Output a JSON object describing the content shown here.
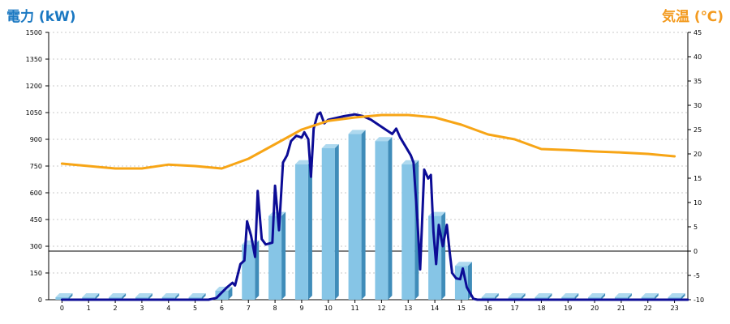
{
  "chart_data": {
    "type": "bar",
    "titles": {
      "left": "電力 (kW)",
      "right": "気温 (℃)"
    },
    "left_axis": {
      "min": 0,
      "max": 1500,
      "ticks": [
        "0",
        "150",
        "300",
        "450",
        "600",
        "750",
        "900",
        "1050",
        "1200",
        "1350",
        "1500"
      ]
    },
    "right_axis": {
      "min": -10,
      "max": 45,
      "ticks": [
        "-10",
        "-5",
        "0",
        "5",
        "10",
        "15",
        "20",
        "25",
        "30",
        "35",
        "40",
        "45"
      ]
    },
    "categories": [
      "0",
      "1",
      "2",
      "3",
      "4",
      "5",
      "6",
      "7",
      "8",
      "9",
      "10",
      "11",
      "12",
      "13",
      "14",
      "15",
      "16",
      "17",
      "18",
      "19",
      "20",
      "21",
      "22",
      "23"
    ],
    "grid": true,
    "colors": {
      "bar_front": "#86c5e6",
      "bar_side": "#3f8cb9",
      "bar_top": "#aed9ef",
      "power_line": "#0c0c96",
      "temp_line": "#f7a516",
      "left_title": "#1a78c2",
      "right_title": "#f39a1e"
    },
    "series": [
      {
        "kind": "bar",
        "axis": "left",
        "values": [
          0,
          0,
          0,
          0,
          0,
          0,
          50,
          310,
          470,
          760,
          850,
          930,
          890,
          760,
          470,
          190,
          0,
          0,
          0,
          0,
          0,
          0,
          0,
          0
        ]
      },
      {
        "kind": "line",
        "axis": "left",
        "points": [
          [
            0,
            0
          ],
          [
            5.5,
            0
          ],
          [
            5.8,
            10
          ],
          [
            6.0,
            40
          ],
          [
            6.2,
            70
          ],
          [
            6.4,
            95
          ],
          [
            6.5,
            80
          ],
          [
            6.7,
            200
          ],
          [
            6.85,
            220
          ],
          [
            6.95,
            440
          ],
          [
            7.1,
            360
          ],
          [
            7.25,
            240
          ],
          [
            7.35,
            610
          ],
          [
            7.5,
            340
          ],
          [
            7.65,
            310
          ],
          [
            7.9,
            320
          ],
          [
            8.0,
            640
          ],
          [
            8.15,
            390
          ],
          [
            8.3,
            770
          ],
          [
            8.45,
            810
          ],
          [
            8.6,
            890
          ],
          [
            8.8,
            920
          ],
          [
            9.0,
            910
          ],
          [
            9.1,
            940
          ],
          [
            9.25,
            900
          ],
          [
            9.35,
            690
          ],
          [
            9.45,
            960
          ],
          [
            9.6,
            1040
          ],
          [
            9.7,
            1050
          ],
          [
            9.85,
            990
          ],
          [
            10.0,
            1010
          ],
          [
            10.3,
            1020
          ],
          [
            10.6,
            1030
          ],
          [
            11.0,
            1040
          ],
          [
            11.3,
            1030
          ],
          [
            11.6,
            1010
          ],
          [
            11.9,
            980
          ],
          [
            12.2,
            950
          ],
          [
            12.4,
            930
          ],
          [
            12.55,
            960
          ],
          [
            12.7,
            910
          ],
          [
            12.9,
            860
          ],
          [
            13.1,
            810
          ],
          [
            13.2,
            770
          ],
          [
            13.35,
            440
          ],
          [
            13.45,
            170
          ],
          [
            13.6,
            730
          ],
          [
            13.75,
            680
          ],
          [
            13.85,
            700
          ],
          [
            13.95,
            380
          ],
          [
            14.05,
            200
          ],
          [
            14.15,
            420
          ],
          [
            14.3,
            300
          ],
          [
            14.45,
            420
          ],
          [
            14.55,
            280
          ],
          [
            14.65,
            150
          ],
          [
            14.8,
            120
          ],
          [
            14.95,
            115
          ],
          [
            15.05,
            175
          ],
          [
            15.2,
            70
          ],
          [
            15.45,
            5
          ],
          [
            15.6,
            0
          ],
          [
            23.5,
            0
          ]
        ]
      },
      {
        "kind": "line",
        "axis": "right",
        "points": [
          [
            0,
            18
          ],
          [
            1,
            17.5
          ],
          [
            2,
            17
          ],
          [
            3,
            17
          ],
          [
            4,
            17.8
          ],
          [
            5,
            17.5
          ],
          [
            6,
            17
          ],
          [
            7,
            19
          ],
          [
            8,
            22
          ],
          [
            9,
            25
          ],
          [
            10,
            26.8
          ],
          [
            11,
            27.5
          ],
          [
            12,
            28
          ],
          [
            13,
            28
          ],
          [
            14,
            27.5
          ],
          [
            15,
            26
          ],
          [
            16,
            24
          ],
          [
            17,
            23
          ],
          [
            18,
            21
          ],
          [
            19,
            20.8
          ],
          [
            20,
            20.5
          ],
          [
            21,
            20.3
          ],
          [
            22,
            20
          ],
          [
            23,
            19.5
          ]
        ]
      }
    ]
  }
}
